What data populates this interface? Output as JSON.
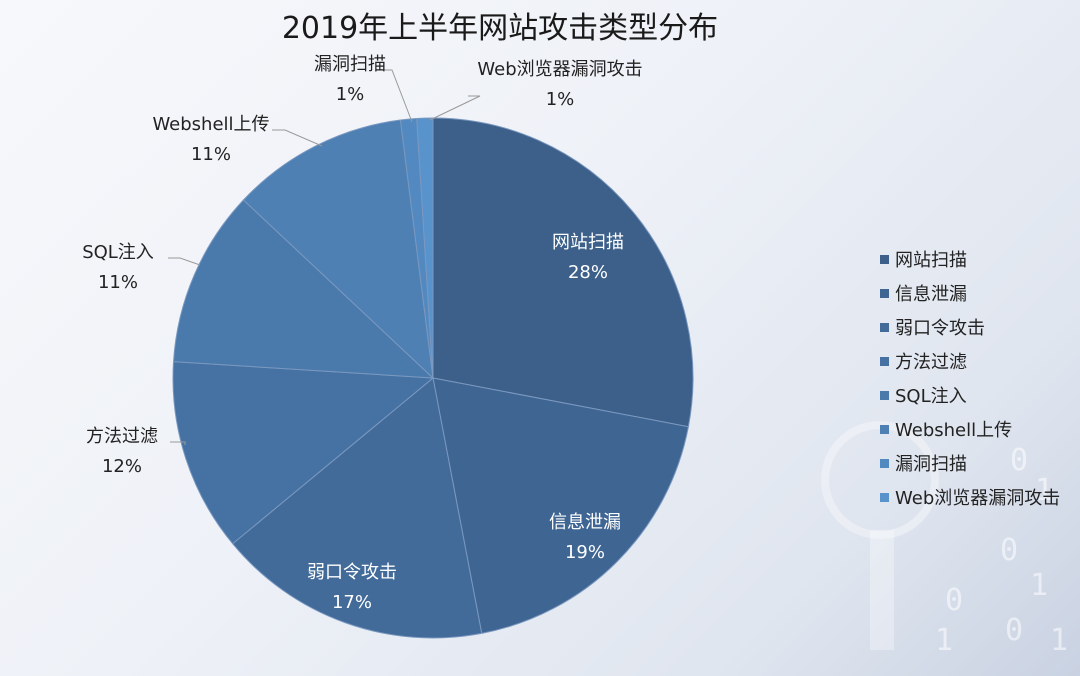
{
  "chart_data": {
    "type": "pie",
    "title": "2019年上半年网站攻击类型分布",
    "slices": [
      {
        "label": "网站扫描",
        "value": 28,
        "display": "28%",
        "color": "#3c6089"
      },
      {
        "label": "信息泄漏",
        "value": 19,
        "display": "19%",
        "color": "#3f6592"
      },
      {
        "label": "弱口令攻击",
        "value": 17,
        "display": "17%",
        "color": "#426b9a"
      },
      {
        "label": "方法过滤",
        "value": 12,
        "display": "12%",
        "color": "#4672a3"
      },
      {
        "label": "SQL注入",
        "value": 11,
        "display": "11%",
        "color": "#4a79ab"
      },
      {
        "label": "Webshell上传",
        "value": 11,
        "display": "11%",
        "color": "#4e80b4"
      },
      {
        "label": "漏洞扫描",
        "value": 1,
        "display": "1%",
        "color": "#5289c0"
      },
      {
        "label": "Web浏览器漏洞攻击",
        "value": 1,
        "display": "1%",
        "color": "#5893cc"
      }
    ],
    "legend_position": "right"
  }
}
